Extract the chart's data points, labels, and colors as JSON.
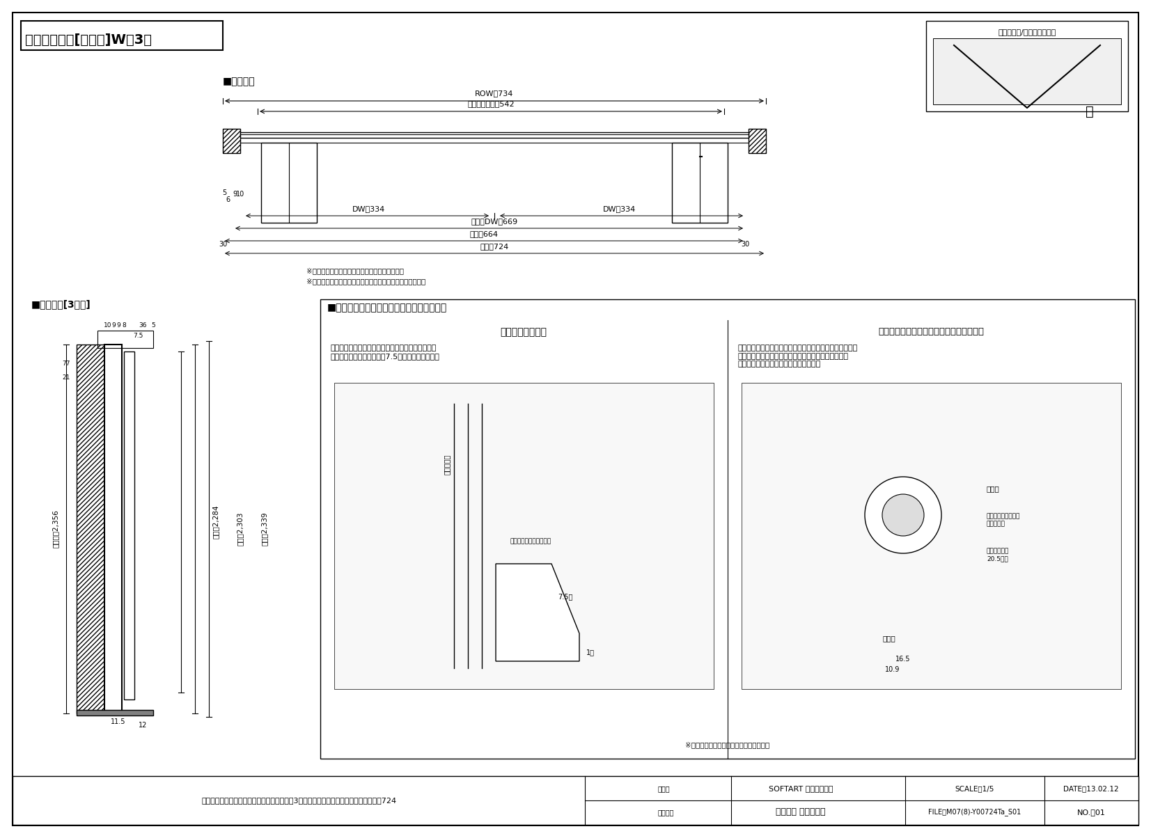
{
  "title": "クローゼット[調整枠]W＝3尺",
  "bg_color": "#ffffff",
  "border_color": "#000000",
  "section_label_horizontal": "■横断面図",
  "section_label_vertical": "■縦断面図[3方枠]",
  "section_label_guide": "■ガイドランナーの取り付け（ＳＡ調整枠）",
  "dim_ROW": "ROW＝734",
  "dim_yukoko": "有効開口寸法＝542",
  "dim_DW1": "DW＝334",
  "dim_DW2": "DW＝334",
  "dim_foldDW": "折戸：DW＝669",
  "dim_waku_nai": "枠内＝664",
  "dim_waku_gai": "枠外＝724",
  "dim_ROH": "ＲＯＨ＝2,356",
  "dim_DH": "ＤＨ＝2,284",
  "dim_waku_nai_v": "枠内＝2,303",
  "dim_waku_gai_v": "枠外＝2,339",
  "note1": "※有効開口寸法にはハンドルの突出は含まない。",
  "note2": "※有効開口寸法は扉の厚さや調整によって若干異なります。",
  "footer_left": "ソフトアート　クローゼットドア　調整枠　3方枠（下枠なし）　ドアＨ８尺　枠外Ｗ724",
  "footer_company": "SOFTART 建具納まり図",
  "footer_maker": "株式会社 ウッドワン",
  "footer_scale": "SCALE　1/5",
  "footer_date": "DATE　13.02.12",
  "footer_file": "FILE　M07(8)-Y00724Ta_S01",
  "footer_no": "NO.　01",
  "guide_title1": "下固定ストッパー",
  "guide_title2": "ストライク（可動側受け金具）の取り付け",
  "guide_text1": "整枠の後ろ面から１㎜外側に取り付けてください。\nストッパー側面は整枠から7.5㎜離してください。",
  "guide_text2": "扉を吊った後ストライクを取り付ける際は、下図のように\n下用ガイド軸とストライクの位置決め溝をそろえて、\n枠に附属のビスで取り付けてください。",
  "page_info": "上吊軸固定/フリーオープン"
}
